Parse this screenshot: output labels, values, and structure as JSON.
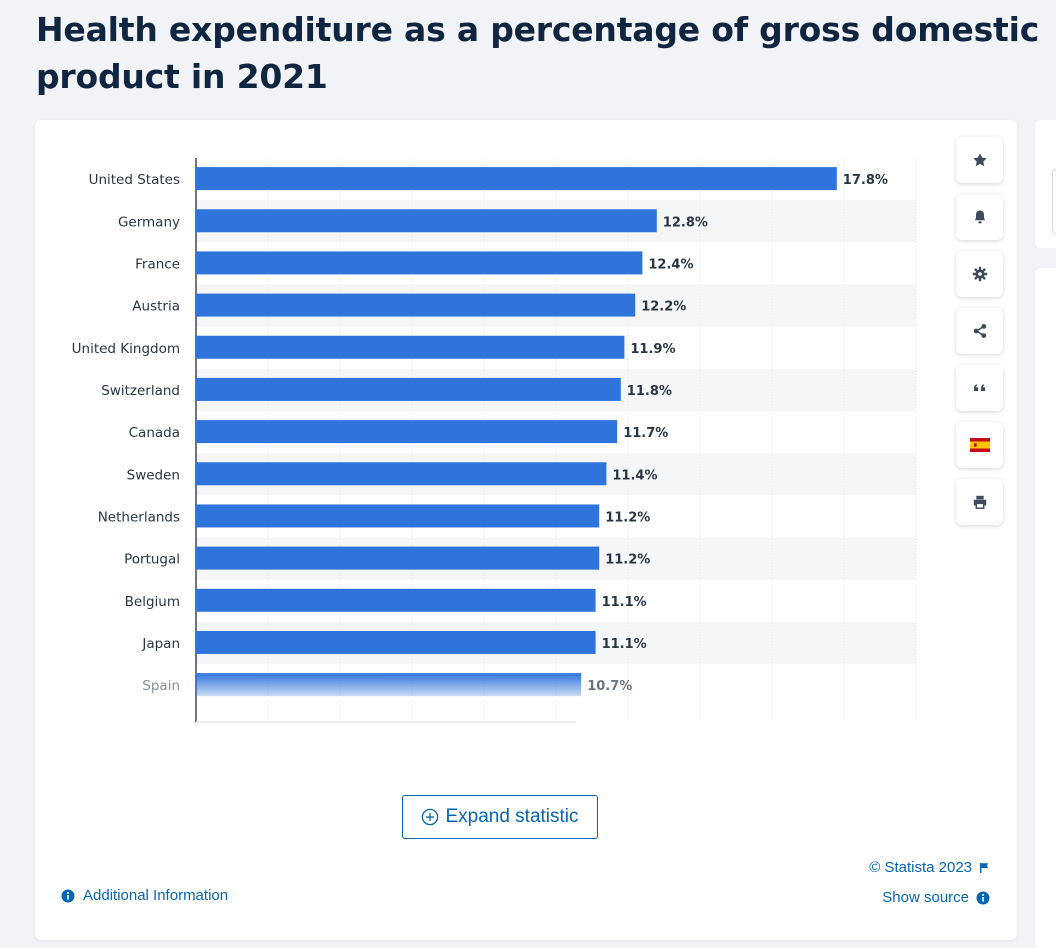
{
  "page": {
    "title": "Health expenditure as a percentage of gross domestic product in 2021"
  },
  "colors": {
    "bar": "#2f74db",
    "accent": "#0666b3",
    "stripe": "#f5f6f8",
    "grid": "#e3e6ea"
  },
  "toolbar": {
    "items": [
      "star-icon",
      "bell-icon",
      "gear-icon",
      "share-icon",
      "quote-icon",
      "spain-flag-icon",
      "print-icon"
    ]
  },
  "chart_data": {
    "type": "bar",
    "orientation": "horizontal",
    "categories": [
      "United States",
      "Germany",
      "France",
      "Austria",
      "United Kingdom",
      "Switzerland",
      "Canada",
      "Sweden",
      "Netherlands",
      "Portugal",
      "Belgium",
      "Japan",
      "Spain"
    ],
    "values": [
      17.8,
      12.8,
      12.4,
      12.2,
      11.9,
      11.8,
      11.7,
      11.4,
      11.2,
      11.2,
      11.1,
      11.1,
      10.7
    ],
    "value_labels": [
      "17.8%",
      "12.8%",
      "12.4%",
      "12.2%",
      "11.9%",
      "11.8%",
      "11.7%",
      "11.4%",
      "11.2%",
      "11.2%",
      "11.1%",
      "11.1%",
      "10.7%"
    ],
    "xlim": [
      0,
      20
    ],
    "grid": true,
    "faded_last_row": true
  },
  "footer": {
    "expand_label": "Expand statistic",
    "copyright": "© Statista 2023",
    "show_source": "Show source",
    "additional_info": "Additional Information"
  }
}
